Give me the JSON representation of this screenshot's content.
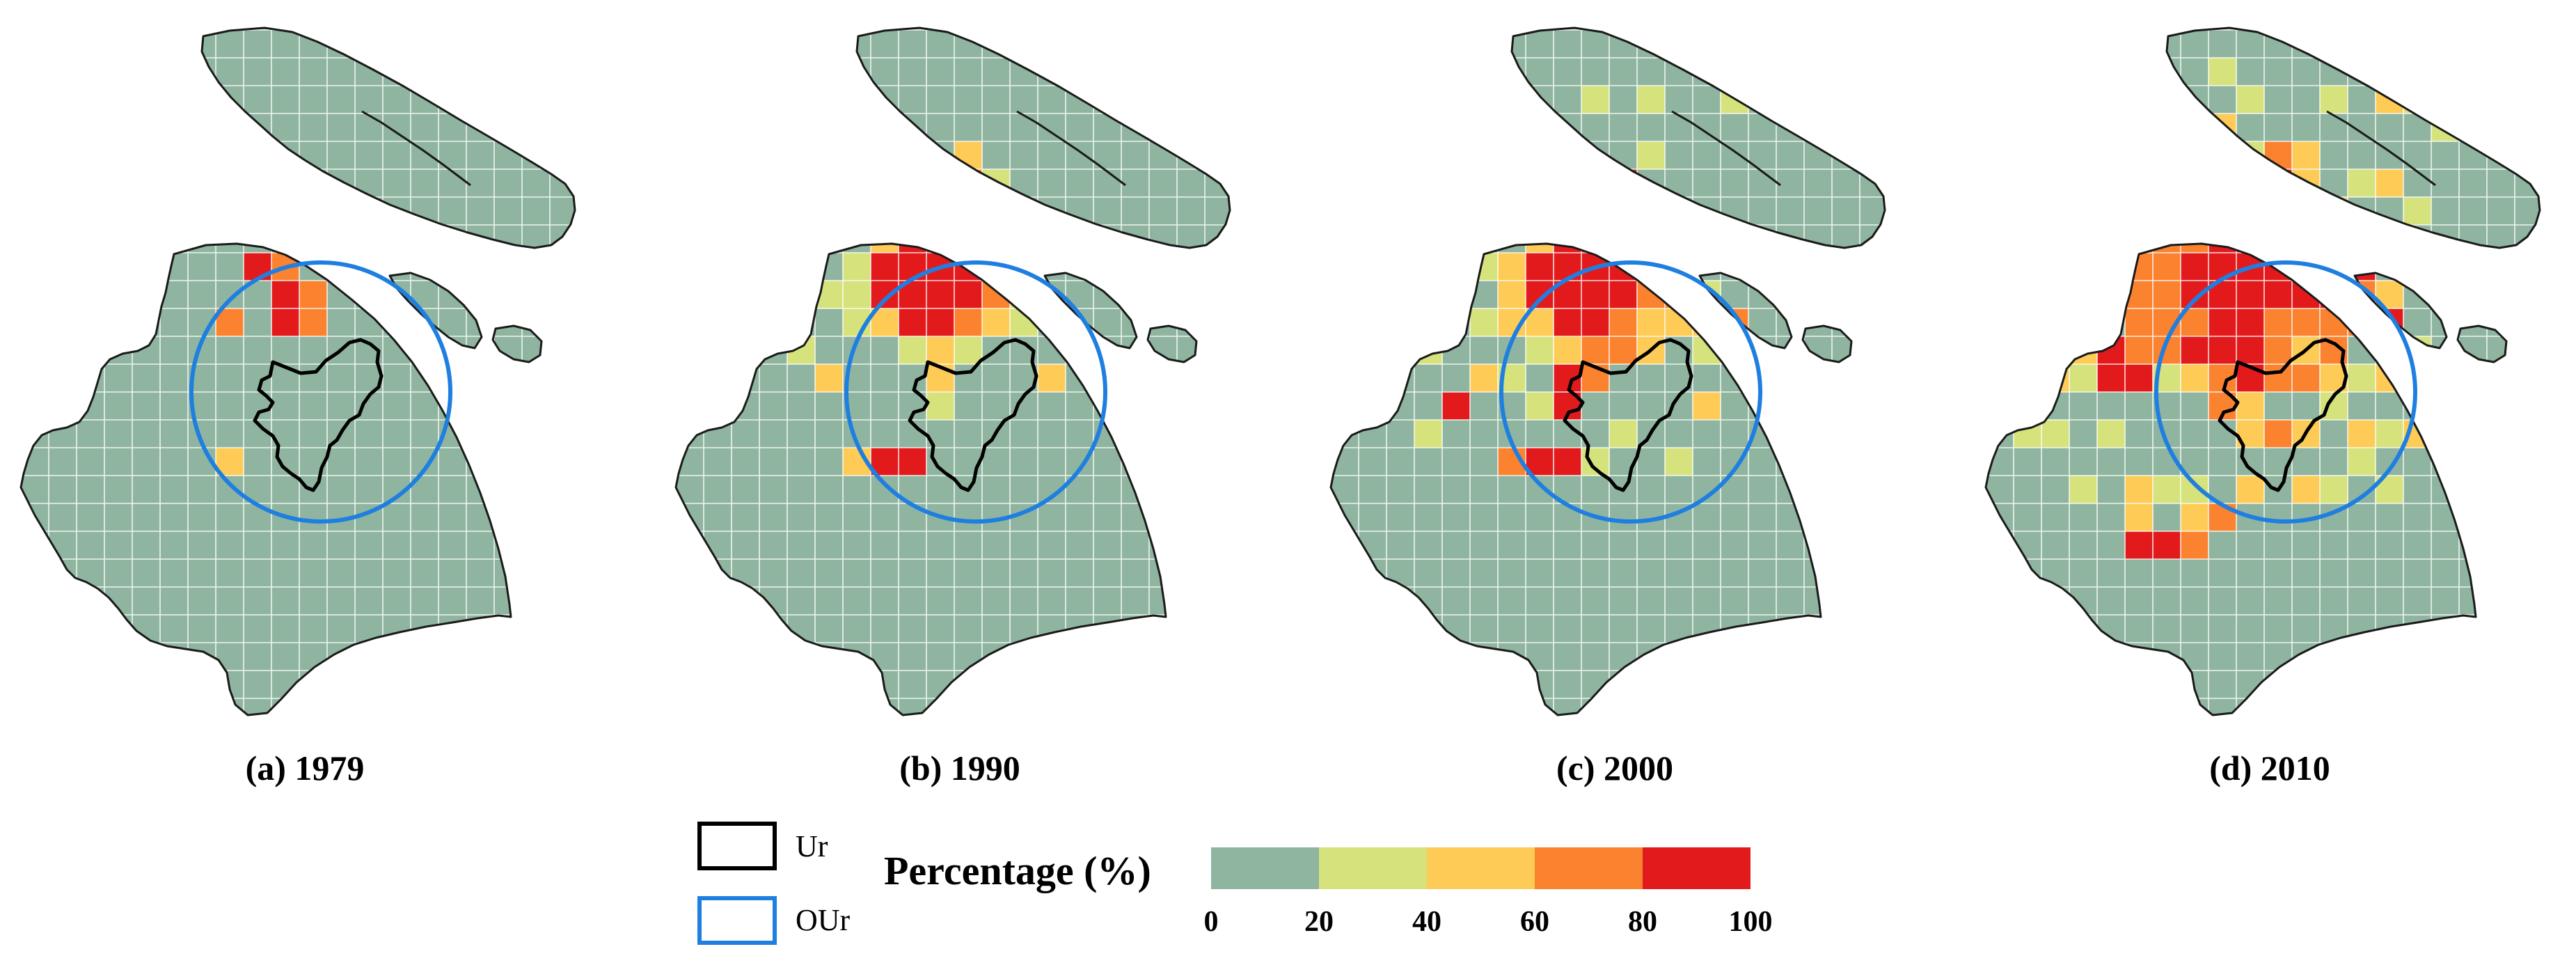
{
  "panels": [
    {
      "caption": "(a) 1979",
      "cells": [
        [
          8,
          8,
          4,
          2
        ],
        [
          9,
          8,
          3,
          4
        ],
        [
          9,
          9,
          4,
          4
        ],
        [
          10,
          9,
          3
        ],
        [
          10,
          10,
          3
        ],
        [
          9,
          10,
          4
        ],
        [
          7,
          10,
          3
        ],
        [
          7,
          15,
          2
        ],
        [
          20,
          3,
          2
        ],
        [
          19,
          4,
          2
        ]
      ]
    },
    {
      "caption": "(b) 1990",
      "cells": [
        [
          7,
          8,
          4
        ],
        [
          8,
          8,
          4
        ],
        [
          9,
          8,
          4
        ],
        [
          10,
          8,
          4
        ],
        [
          7,
          9,
          4
        ],
        [
          8,
          9,
          4
        ],
        [
          9,
          9,
          4
        ],
        [
          10,
          9,
          4
        ],
        [
          8,
          10,
          4
        ],
        [
          9,
          10,
          4
        ],
        [
          8,
          7,
          4
        ],
        [
          9,
          7,
          4
        ],
        [
          10,
          7,
          4
        ],
        [
          11,
          8,
          3
        ],
        [
          11,
          9,
          3
        ],
        [
          10,
          10,
          3
        ],
        [
          11,
          10,
          2
        ],
        [
          10,
          6,
          2
        ],
        [
          9,
          6,
          1
        ],
        [
          8,
          6,
          1
        ],
        [
          7,
          7,
          2
        ],
        [
          6,
          8,
          1
        ],
        [
          6,
          9,
          1
        ],
        [
          7,
          10,
          2
        ],
        [
          6,
          10,
          1
        ],
        [
          11,
          7,
          2
        ],
        [
          12,
          9,
          1
        ],
        [
          12,
          8,
          1
        ],
        [
          11,
          6,
          1
        ],
        [
          9,
          11,
          2
        ],
        [
          10,
          11,
          1
        ],
        [
          8,
          11,
          1
        ],
        [
          12,
          10,
          1
        ],
        [
          9,
          12,
          2
        ],
        [
          10,
          5,
          3
        ],
        [
          10,
          4,
          2
        ],
        [
          11,
          5,
          1
        ],
        [
          5,
          12,
          2
        ],
        [
          13,
          12,
          2
        ],
        [
          7,
          15,
          4
        ],
        [
          6,
          15,
          2
        ],
        [
          8,
          15,
          4
        ],
        [
          4,
          11,
          1
        ],
        [
          9,
          13,
          1
        ],
        [
          7,
          3,
          4
        ],
        [
          3,
          3,
          1
        ],
        [
          6,
          6,
          1
        ],
        [
          5,
          9,
          1
        ]
      ]
    },
    {
      "caption": "(c) 2000",
      "cells": [
        [
          7,
          8,
          4
        ],
        [
          8,
          8,
          4
        ],
        [
          9,
          8,
          4
        ],
        [
          10,
          8,
          4
        ],
        [
          11,
          8,
          4
        ],
        [
          7,
          9,
          4
        ],
        [
          8,
          9,
          4
        ],
        [
          9,
          9,
          4
        ],
        [
          10,
          9,
          4
        ],
        [
          8,
          10,
          4
        ],
        [
          9,
          10,
          4
        ],
        [
          8,
          7,
          4
        ],
        [
          9,
          7,
          4
        ],
        [
          10,
          7,
          4
        ],
        [
          11,
          7,
          4
        ],
        [
          12,
          8,
          4
        ],
        [
          11,
          9,
          3
        ],
        [
          10,
          10,
          3
        ],
        [
          11,
          10,
          2
        ],
        [
          12,
          9,
          3
        ],
        [
          10,
          5,
          4
        ],
        [
          10,
          6,
          4
        ],
        [
          11,
          6,
          4
        ],
        [
          9,
          6,
          2
        ],
        [
          8,
          6,
          2
        ],
        [
          7,
          7,
          2
        ],
        [
          6,
          8,
          2
        ],
        [
          6,
          9,
          2
        ],
        [
          7,
          10,
          2
        ],
        [
          6,
          10,
          2
        ],
        [
          12,
          7,
          3
        ],
        [
          12,
          10,
          2
        ],
        [
          9,
          11,
          3
        ],
        [
          10,
          11,
          3
        ],
        [
          8,
          11,
          2
        ],
        [
          7,
          11,
          1
        ],
        [
          8,
          12,
          4
        ],
        [
          8,
          13,
          4
        ],
        [
          9,
          12,
          3
        ],
        [
          11,
          11,
          2
        ],
        [
          5,
          8,
          1
        ],
        [
          5,
          10,
          1
        ],
        [
          4,
          9,
          1
        ],
        [
          13,
          9,
          1
        ],
        [
          13,
          10,
          2
        ],
        [
          14,
          10,
          3
        ],
        [
          4,
          13,
          4
        ],
        [
          5,
          12,
          2
        ],
        [
          6,
          12,
          1
        ],
        [
          7,
          13,
          1
        ],
        [
          3,
          10,
          3
        ],
        [
          3,
          11,
          1
        ],
        [
          13,
          11,
          1
        ],
        [
          14,
          11,
          1
        ],
        [
          13,
          13,
          2
        ],
        [
          10,
          14,
          1
        ],
        [
          12,
          15,
          1
        ],
        [
          9,
          15,
          1
        ],
        [
          7,
          15,
          4
        ],
        [
          6,
          15,
          3
        ],
        [
          8,
          15,
          4
        ],
        [
          3,
          14,
          1
        ],
        [
          15,
          8,
          1
        ],
        [
          8,
          4,
          1
        ],
        [
          11,
          4,
          1
        ],
        [
          5,
          5,
          1
        ],
        [
          6,
          6,
          2
        ],
        [
          7,
          6,
          2
        ],
        [
          3,
          3,
          2
        ],
        [
          1,
          1,
          1
        ],
        [
          9,
          2,
          1
        ],
        [
          11,
          2,
          1
        ],
        [
          14,
          2,
          1
        ],
        [
          7,
          3,
          4
        ]
      ]
    },
    {
      "caption": "(d) 2010",
      "cells": [
        [
          7,
          8,
          4
        ],
        [
          8,
          8,
          4
        ],
        [
          9,
          8,
          4
        ],
        [
          10,
          8,
          4
        ],
        [
          11,
          8,
          4
        ],
        [
          7,
          9,
          4
        ],
        [
          8,
          9,
          4
        ],
        [
          9,
          9,
          4
        ],
        [
          10,
          9,
          4
        ],
        [
          11,
          9,
          4
        ],
        [
          8,
          10,
          4
        ],
        [
          9,
          10,
          4
        ],
        [
          10,
          10,
          3
        ],
        [
          8,
          7,
          4
        ],
        [
          9,
          7,
          4
        ],
        [
          10,
          7,
          4
        ],
        [
          11,
          7,
          4
        ],
        [
          12,
          8,
          4
        ],
        [
          12,
          9,
          4
        ],
        [
          10,
          5,
          4
        ],
        [
          10,
          6,
          4
        ],
        [
          11,
          6,
          4
        ],
        [
          12,
          7,
          4
        ],
        [
          9,
          6,
          4
        ],
        [
          13,
          7,
          3
        ],
        [
          13,
          8,
          4
        ],
        [
          13,
          9,
          3
        ],
        [
          14,
          9,
          2
        ],
        [
          14,
          10,
          4
        ],
        [
          13,
          10,
          3
        ],
        [
          12,
          10,
          3
        ],
        [
          11,
          10,
          3
        ],
        [
          9,
          11,
          4
        ],
        [
          9,
          12,
          4
        ],
        [
          8,
          11,
          4
        ],
        [
          7,
          11,
          4
        ],
        [
          6,
          11,
          3
        ],
        [
          8,
          12,
          3
        ],
        [
          10,
          11,
          3
        ],
        [
          11,
          11,
          2
        ],
        [
          12,
          11,
          3
        ],
        [
          5,
          11,
          3
        ],
        [
          4,
          11,
          4
        ],
        [
          6,
          10,
          3
        ],
        [
          7,
          10,
          3
        ],
        [
          5,
          10,
          3
        ],
        [
          5,
          9,
          3
        ],
        [
          6,
          9,
          3
        ],
        [
          6,
          8,
          3
        ],
        [
          5,
          8,
          3
        ],
        [
          4,
          8,
          3
        ],
        [
          4,
          9,
          3
        ],
        [
          7,
          7,
          3
        ],
        [
          6,
          7,
          3
        ],
        [
          5,
          7,
          3
        ],
        [
          7,
          6,
          3
        ],
        [
          8,
          6,
          3
        ],
        [
          6,
          6,
          2
        ],
        [
          5,
          6,
          2
        ],
        [
          8,
          5,
          3
        ],
        [
          9,
          5,
          3
        ],
        [
          11,
          5,
          2
        ],
        [
          12,
          6,
          2
        ],
        [
          3,
          10,
          4
        ],
        [
          3,
          11,
          2
        ],
        [
          3,
          12,
          1
        ],
        [
          4,
          12,
          4
        ],
        [
          5,
          12,
          4
        ],
        [
          6,
          12,
          1
        ],
        [
          7,
          12,
          2
        ],
        [
          8,
          13,
          3
        ],
        [
          9,
          13,
          2
        ],
        [
          10,
          12,
          3
        ],
        [
          11,
          12,
          3
        ],
        [
          12,
          12,
          2
        ],
        [
          13,
          12,
          1
        ],
        [
          14,
          12,
          2
        ],
        [
          15,
          11,
          1
        ],
        [
          9,
          14,
          2
        ],
        [
          10,
          14,
          3
        ],
        [
          11,
          14,
          2
        ],
        [
          13,
          14,
          2
        ],
        [
          14,
          14,
          1
        ],
        [
          15,
          14,
          2
        ],
        [
          16,
          14,
          2
        ],
        [
          12,
          13,
          1
        ],
        [
          16,
          13,
          1
        ],
        [
          4,
          14,
          1
        ],
        [
          2,
          14,
          1
        ],
        [
          1,
          14,
          1
        ],
        [
          1,
          13,
          1
        ],
        [
          3,
          16,
          1
        ],
        [
          5,
          16,
          2
        ],
        [
          6,
          16,
          1
        ],
        [
          7,
          16,
          1
        ],
        [
          9,
          16,
          2
        ],
        [
          11,
          16,
          2
        ],
        [
          12,
          16,
          1
        ],
        [
          8,
          17,
          3
        ],
        [
          7,
          17,
          2
        ],
        [
          6,
          18,
          4
        ],
        [
          7,
          18,
          3
        ],
        [
          5,
          18,
          4
        ],
        [
          5,
          17,
          2
        ],
        [
          13,
          15,
          1
        ],
        [
          14,
          16,
          1
        ],
        [
          2,
          12,
          2
        ],
        [
          8,
          3,
          2
        ],
        [
          10,
          4,
          3
        ],
        [
          11,
          4,
          2
        ],
        [
          9,
          4,
          1
        ],
        [
          13,
          5,
          1
        ],
        [
          14,
          5,
          2
        ],
        [
          15,
          6,
          1
        ],
        [
          3,
          5,
          1
        ],
        [
          4,
          6,
          1
        ],
        [
          3,
          7,
          1
        ],
        [
          2,
          8,
          1
        ],
        [
          3,
          9,
          1
        ],
        [
          1,
          10,
          1
        ],
        [
          1,
          11,
          1
        ],
        [
          2,
          11,
          1
        ],
        [
          6,
          3,
          1
        ],
        [
          4,
          3,
          2
        ],
        [
          3,
          3,
          2
        ],
        [
          2,
          2,
          1
        ],
        [
          5,
          2,
          1
        ],
        [
          1,
          1,
          1
        ],
        [
          2,
          1,
          2
        ],
        [
          9,
          2,
          1
        ],
        [
          12,
          2,
          1
        ],
        [
          14,
          2,
          2
        ],
        [
          15,
          2,
          1
        ],
        [
          16,
          3,
          1
        ],
        [
          16,
          2,
          2
        ],
        [
          8,
          1,
          1
        ]
      ]
    }
  ],
  "legend": {
    "boundary_items": [
      {
        "label": "Ur",
        "color": "#000000"
      },
      {
        "label": "OUr",
        "color": "#1f7fe0"
      }
    ],
    "title": "Percentage (%)",
    "classes": [
      {
        "color": "#8fb5a0"
      },
      {
        "color": "#d6e27c"
      },
      {
        "color": "#fdcb56"
      },
      {
        "color": "#fb822f"
      },
      {
        "color": "#e31a1c"
      }
    ],
    "ticks": [
      "0",
      "20",
      "40",
      "60",
      "80",
      "100"
    ]
  }
}
